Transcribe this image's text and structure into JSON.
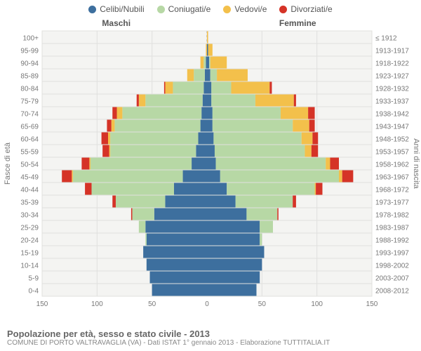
{
  "legend": {
    "items": [
      {
        "key": "celibi",
        "label": "Celibi/Nubili",
        "color": "#3d6f9e"
      },
      {
        "key": "coniugati",
        "label": "Coniugati/e",
        "color": "#b7d8a5"
      },
      {
        "key": "vedovi",
        "label": "Vedovi/e",
        "color": "#f3c04b"
      },
      {
        "key": "divorziati",
        "label": "Divorziati/e",
        "color": "#d53327"
      }
    ]
  },
  "chart": {
    "type": "population-pyramid",
    "left_title": "Maschi",
    "right_title": "Femmine",
    "y_axis_left_label": "Fasce di età",
    "y_axis_right_label": "Anni di nascita",
    "x_ticks": [
      150,
      100,
      50,
      0,
      50,
      100,
      150
    ],
    "x_max": 150,
    "background": "#f4f4f2",
    "grid_color": "#e0e0de",
    "center_line_color": "#bdbdbd",
    "axis_font_size": 10,
    "label_font_size": 11,
    "title_font_size": 12,
    "bar_gap": 1,
    "colors": {
      "celibi": "#3d6f9e",
      "coniugati": "#b7d8a5",
      "vedovi": "#f3c04b",
      "divorziati": "#d53327"
    },
    "rows": [
      {
        "age": "100+",
        "birth": "≤ 1912",
        "m": {
          "celibi": 0,
          "coniugati": 0,
          "vedovi": 0,
          "divorziati": 0
        },
        "f": {
          "celibi": 0,
          "coniugati": 0,
          "vedovi": 1,
          "divorziati": 0
        }
      },
      {
        "age": "95-99",
        "birth": "1913-1917",
        "m": {
          "celibi": 0,
          "coniugati": 0,
          "vedovi": 1,
          "divorziati": 0
        },
        "f": {
          "celibi": 1,
          "coniugati": 0,
          "vedovi": 4,
          "divorziati": 0
        }
      },
      {
        "age": "90-94",
        "birth": "1918-1922",
        "m": {
          "celibi": 1,
          "coniugati": 2,
          "vedovi": 3,
          "divorziati": 0
        },
        "f": {
          "celibi": 2,
          "coniugati": 1,
          "vedovi": 15,
          "divorziati": 0
        }
      },
      {
        "age": "85-89",
        "birth": "1923-1927",
        "m": {
          "celibi": 2,
          "coniugati": 10,
          "vedovi": 6,
          "divorziati": 0
        },
        "f": {
          "celibi": 3,
          "coniugati": 6,
          "vedovi": 28,
          "divorziati": 0
        }
      },
      {
        "age": "80-84",
        "birth": "1928-1932",
        "m": {
          "celibi": 3,
          "coniugati": 28,
          "vedovi": 7,
          "divorziati": 1
        },
        "f": {
          "celibi": 4,
          "coniugati": 18,
          "vedovi": 35,
          "divorziati": 2
        }
      },
      {
        "age": "75-79",
        "birth": "1933-1937",
        "m": {
          "celibi": 4,
          "coniugati": 52,
          "vedovi": 6,
          "divorziati": 2
        },
        "f": {
          "celibi": 4,
          "coniugati": 40,
          "vedovi": 35,
          "divorziati": 2
        }
      },
      {
        "age": "70-74",
        "birth": "1938-1942",
        "m": {
          "celibi": 5,
          "coniugati": 72,
          "vedovi": 5,
          "divorziati": 4
        },
        "f": {
          "celibi": 5,
          "coniugati": 62,
          "vedovi": 25,
          "divorziati": 6
        }
      },
      {
        "age": "65-69",
        "birth": "1943-1947",
        "m": {
          "celibi": 6,
          "coniugati": 78,
          "vedovi": 3,
          "divorziati": 4
        },
        "f": {
          "celibi": 5,
          "coniugati": 73,
          "vedovi": 15,
          "divorziati": 5
        }
      },
      {
        "age": "60-64",
        "birth": "1948-1952",
        "m": {
          "celibi": 8,
          "coniugati": 80,
          "vedovi": 2,
          "divorziati": 6
        },
        "f": {
          "celibi": 6,
          "coniugati": 80,
          "vedovi": 10,
          "divorziati": 5
        }
      },
      {
        "age": "55-59",
        "birth": "1953-1957",
        "m": {
          "celibi": 10,
          "coniugati": 78,
          "vedovi": 1,
          "divorziati": 6
        },
        "f": {
          "celibi": 7,
          "coniugati": 82,
          "vedovi": 6,
          "divorziati": 6
        }
      },
      {
        "age": "50-54",
        "birth": "1958-1962",
        "m": {
          "celibi": 14,
          "coniugati": 92,
          "vedovi": 1,
          "divorziati": 7
        },
        "f": {
          "celibi": 8,
          "coniugati": 100,
          "vedovi": 4,
          "divorziati": 8
        }
      },
      {
        "age": "45-49",
        "birth": "1963-1967",
        "m": {
          "celibi": 22,
          "coniugati": 100,
          "vedovi": 1,
          "divorziati": 9
        },
        "f": {
          "celibi": 12,
          "coniugati": 108,
          "vedovi": 3,
          "divorziati": 10
        }
      },
      {
        "age": "40-44",
        "birth": "1968-1972",
        "m": {
          "celibi": 30,
          "coniugati": 75,
          "vedovi": 0,
          "divorziati": 6
        },
        "f": {
          "celibi": 18,
          "coniugati": 80,
          "vedovi": 1,
          "divorziati": 6
        }
      },
      {
        "age": "35-39",
        "birth": "1973-1977",
        "m": {
          "celibi": 38,
          "coniugati": 45,
          "vedovi": 0,
          "divorziati": 3
        },
        "f": {
          "celibi": 26,
          "coniugati": 52,
          "vedovi": 0,
          "divorziati": 3
        }
      },
      {
        "age": "30-34",
        "birth": "1978-1982",
        "m": {
          "celibi": 48,
          "coniugati": 20,
          "vedovi": 0,
          "divorziati": 1
        },
        "f": {
          "celibi": 36,
          "coniugati": 28,
          "vedovi": 0,
          "divorziati": 1
        }
      },
      {
        "age": "25-29",
        "birth": "1983-1987",
        "m": {
          "celibi": 56,
          "coniugati": 6,
          "vedovi": 0,
          "divorziati": 0
        },
        "f": {
          "celibi": 48,
          "coniugati": 12,
          "vedovi": 0,
          "divorziati": 0
        }
      },
      {
        "age": "20-24",
        "birth": "1988-1992",
        "m": {
          "celibi": 55,
          "coniugati": 1,
          "vedovi": 0,
          "divorziati": 0
        },
        "f": {
          "celibi": 48,
          "coniugati": 2,
          "vedovi": 0,
          "divorziati": 0
        }
      },
      {
        "age": "15-19",
        "birth": "1993-1997",
        "m": {
          "celibi": 58,
          "coniugati": 0,
          "vedovi": 0,
          "divorziati": 0
        },
        "f": {
          "celibi": 52,
          "coniugati": 0,
          "vedovi": 0,
          "divorziati": 0
        }
      },
      {
        "age": "10-14",
        "birth": "1998-2002",
        "m": {
          "celibi": 55,
          "coniugati": 0,
          "vedovi": 0,
          "divorziati": 0
        },
        "f": {
          "celibi": 50,
          "coniugati": 0,
          "vedovi": 0,
          "divorziati": 0
        }
      },
      {
        "age": "5-9",
        "birth": "2003-2007",
        "m": {
          "celibi": 52,
          "coniugati": 0,
          "vedovi": 0,
          "divorziati": 0
        },
        "f": {
          "celibi": 48,
          "coniugati": 0,
          "vedovi": 0,
          "divorziati": 0
        }
      },
      {
        "age": "0-4",
        "birth": "2008-2012",
        "m": {
          "celibi": 50,
          "coniugati": 0,
          "vedovi": 0,
          "divorziati": 0
        },
        "f": {
          "celibi": 45,
          "coniugati": 0,
          "vedovi": 0,
          "divorziati": 0
        }
      }
    ]
  },
  "footer": {
    "title": "Popolazione per età, sesso e stato civile - 2013",
    "subtitle": "COMUNE DI PORTO VALTRAVAGLIA (VA) - Dati ISTAT 1° gennaio 2013 - Elaborazione TUTTITALIA.IT"
  }
}
